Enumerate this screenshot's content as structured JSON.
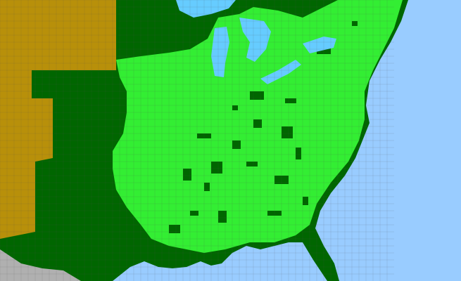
{
  "map": {
    "colors": {
      "ocean": "#99ccff",
      "lakes": "#66ccff",
      "outside_region": "#b0b0b0",
      "absent_region": "#b8900a",
      "state_present": "#006600",
      "county_present": "#33ee33",
      "county_borders": "#555555"
    }
  }
}
